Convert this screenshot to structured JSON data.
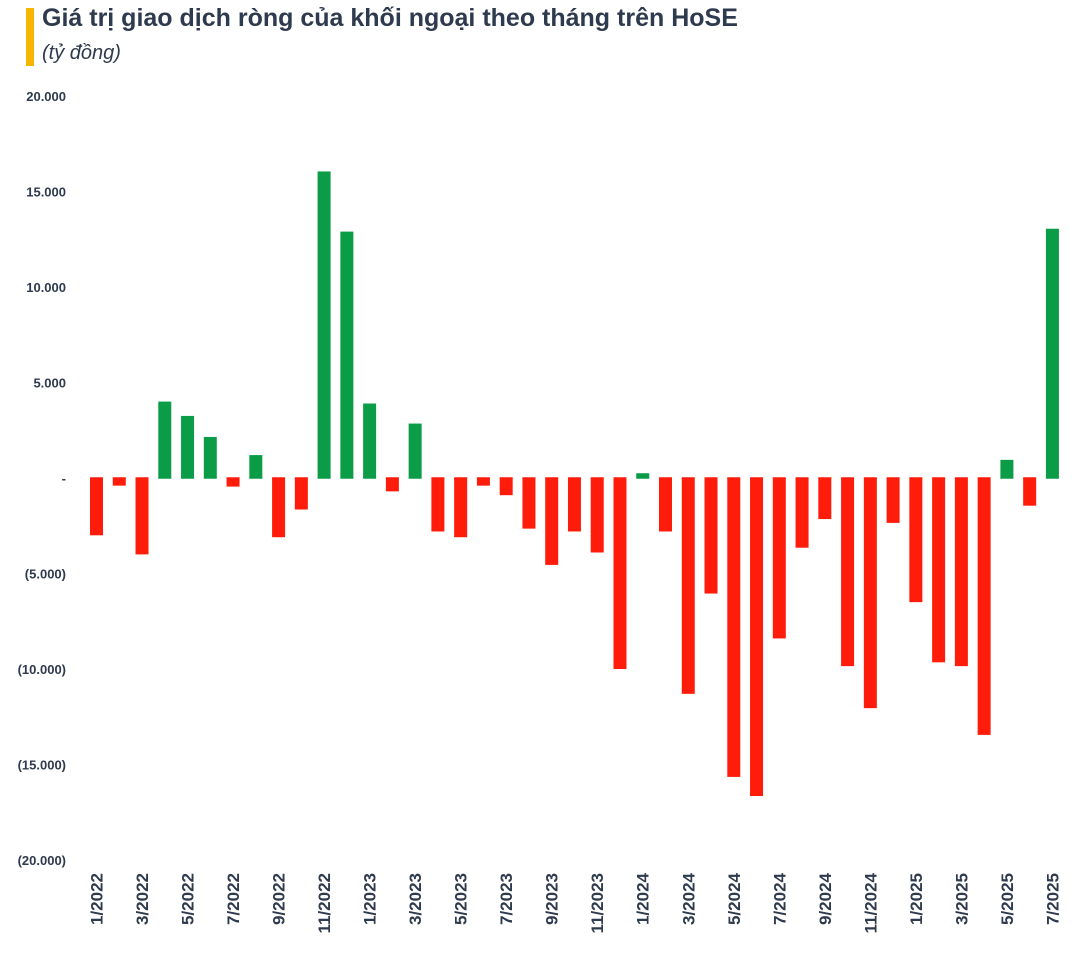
{
  "header": {
    "title": "Giá trị giao dịch ròng của khối ngoại theo tháng trên HoSE",
    "subtitle": "(tỷ đồng)"
  },
  "colors": {
    "accent_bar": "#f7b500",
    "positive": "#0a9c46",
    "negative": "#ff1c0a",
    "axis_text": "#2e3a4d"
  },
  "chart_data": {
    "type": "bar",
    "ylabel": "tỷ đồng",
    "ylim": [
      -20000,
      20000
    ],
    "y_ticks": [
      20000,
      15000,
      10000,
      5000,
      0,
      -5000,
      -10000,
      -15000,
      -20000
    ],
    "y_tick_labels": [
      "20.000",
      "15.000",
      "10.000",
      "5.000",
      "-",
      "(5.000)",
      "(10.000)",
      "(15.000)",
      "(20.000)"
    ],
    "grid": false,
    "categories": [
      "1/2022",
      "2/2022",
      "3/2022",
      "4/2022",
      "5/2022",
      "6/2022",
      "7/2022",
      "8/2022",
      "9/2022",
      "10/2022",
      "11/2022",
      "12/2022",
      "1/2023",
      "2/2023",
      "3/2023",
      "4/2023",
      "5/2023",
      "6/2023",
      "7/2023",
      "8/2023",
      "9/2023",
      "10/2023",
      "11/2023",
      "12/2023",
      "1/2024",
      "2/2024",
      "3/2024",
      "4/2024",
      "5/2024",
      "6/2024",
      "7/2024",
      "8/2024",
      "9/2024",
      "10/2024",
      "11/2024",
      "12/2024",
      "1/2025",
      "2/2025",
      "3/2025",
      "4/2025",
      "5/2025",
      "6/2025",
      "7/2025"
    ],
    "x_tick_labels": [
      "1/2022",
      "3/2022",
      "5/2022",
      "7/2022",
      "9/2022",
      "11/2022",
      "1/2023",
      "3/2023",
      "5/2023",
      "7/2023",
      "9/2023",
      "11/2023",
      "1/2024",
      "3/2024",
      "5/2024",
      "7/2024",
      "9/2024",
      "11/2024",
      "1/2025",
      "3/2025",
      "5/2025",
      "7/2025"
    ],
    "values": [
      -3000,
      -400,
      -4000,
      4000,
      3250,
      2150,
      -450,
      1200,
      -3100,
      -1650,
      16050,
      12900,
      3900,
      -700,
      2850,
      -2800,
      -3100,
      -400,
      -900,
      -2650,
      -4550,
      -2800,
      -3900,
      -10000,
      250,
      -2800,
      -11300,
      -6050,
      -15650,
      -16650,
      -8400,
      -3650,
      -2150,
      -9850,
      -12050,
      -2350,
      -6500,
      -9650,
      -9850,
      -13450,
      950,
      -1450,
      13050
    ]
  }
}
